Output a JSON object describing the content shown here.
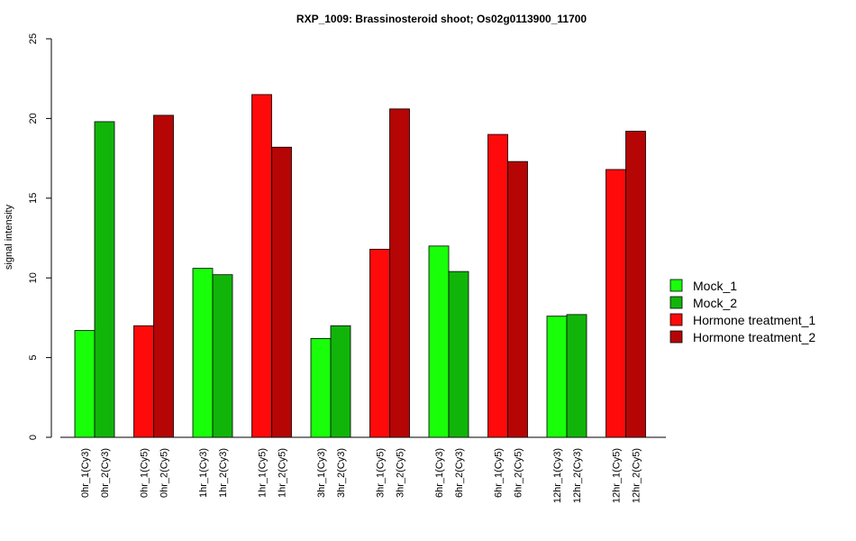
{
  "chart_data": {
    "type": "bar",
    "title": "RXP_1009: Brassinosteroid shoot; Os02g0113900_11700",
    "xlabel": "",
    "ylabel": "signal intensity",
    "ylim": [
      0,
      25
    ],
    "yticks": [
      0,
      5,
      10,
      15,
      20,
      25
    ],
    "grid": false,
    "legend_position": "right",
    "legend": [
      {
        "name": "Mock_1",
        "color": "#19ff0a"
      },
      {
        "name": "Mock_2",
        "color": "#11b50a"
      },
      {
        "name": "Hormone treatment_1",
        "color": "#ff0a0a"
      },
      {
        "name": "Hormone treatment_2",
        "color": "#b50505"
      }
    ],
    "bars": [
      {
        "label": "0hr_1(Cy3)",
        "value": 6.7,
        "series": 0
      },
      {
        "label": "0hr_2(Cy3)",
        "value": 19.8,
        "series": 1
      },
      {
        "label": "0hr_1(Cy5)",
        "value": 7.0,
        "series": 2
      },
      {
        "label": "0hr_2(Cy5)",
        "value": 20.2,
        "series": 3
      },
      {
        "label": "1hr_1(Cy3)",
        "value": 10.6,
        "series": 0
      },
      {
        "label": "1hr_2(Cy3)",
        "value": 10.2,
        "series": 1
      },
      {
        "label": "1hr_1(Cy5)",
        "value": 21.5,
        "series": 2
      },
      {
        "label": "1hr_2(Cy5)",
        "value": 18.2,
        "series": 3
      },
      {
        "label": "3hr_1(Cy3)",
        "value": 6.2,
        "series": 0
      },
      {
        "label": "3hr_2(Cy3)",
        "value": 7.0,
        "series": 1
      },
      {
        "label": "3hr_1(Cy5)",
        "value": 11.8,
        "series": 2
      },
      {
        "label": "3hr_2(Cy5)",
        "value": 20.6,
        "series": 3
      },
      {
        "label": "6hr_1(Cy3)",
        "value": 12.0,
        "series": 0
      },
      {
        "label": "6hr_2(Cy3)",
        "value": 10.4,
        "series": 1
      },
      {
        "label": "6hr_1(Cy5)",
        "value": 19.0,
        "series": 2
      },
      {
        "label": "6hr_2(Cy5)",
        "value": 17.3,
        "series": 3
      },
      {
        "label": "12hr_1(Cy3)",
        "value": 7.6,
        "series": 0
      },
      {
        "label": "12hr_2(Cy3)",
        "value": 7.7,
        "series": 1
      },
      {
        "label": "12hr_1(Cy5)",
        "value": 16.8,
        "series": 2
      },
      {
        "label": "12hr_2(Cy5)",
        "value": 19.2,
        "series": 3
      }
    ]
  }
}
